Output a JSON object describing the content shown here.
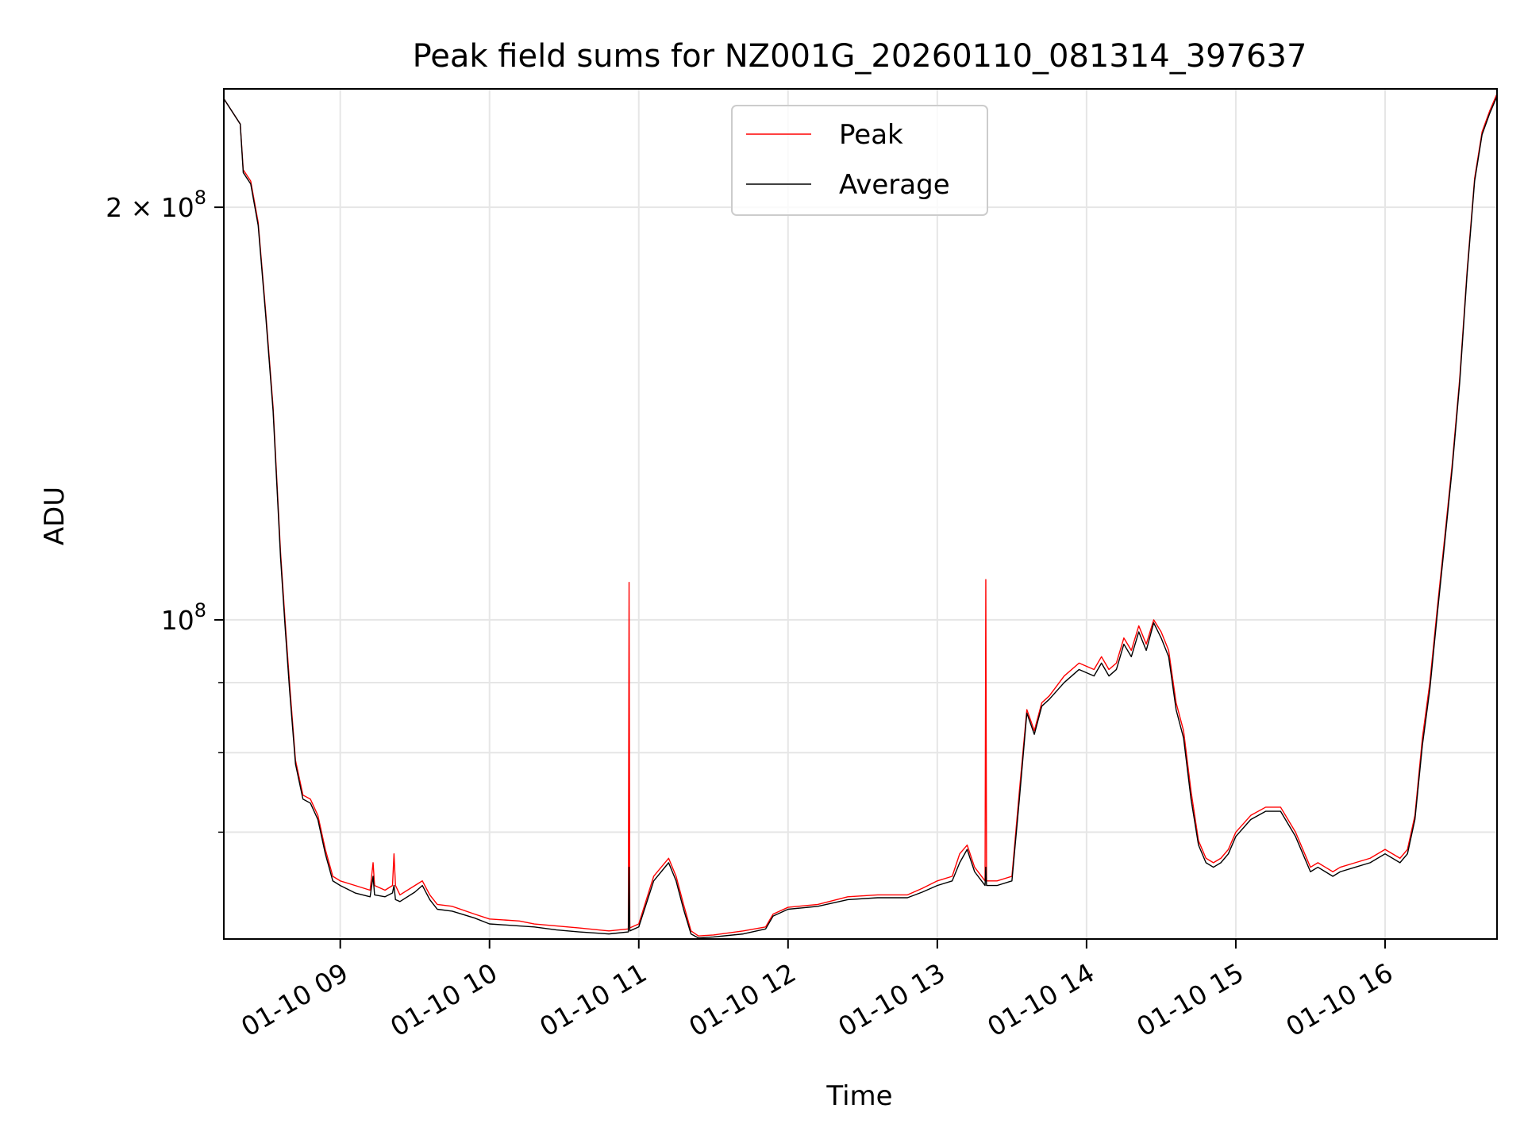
{
  "chart_data": {
    "type": "line",
    "title": "Peak field sums for NZ001G_20260110_081314_397637",
    "xlabel": "Time",
    "ylabel": "ADU",
    "yscale": "log",
    "grid": true,
    "legend_position": "top-center",
    "xlim_hours": [
      8.22,
      16.75
    ],
    "ylim": [
      58500000,
      244000000
    ],
    "x_tick_labels": [
      "01-10 09",
      "01-10 10",
      "01-10 11",
      "01-10 12",
      "01-10 13",
      "01-10 14",
      "01-10 15",
      "01-10 16"
    ],
    "x_tick_hours": [
      9,
      10,
      11,
      12,
      13,
      14,
      15,
      16
    ],
    "y_tick_labels": [
      "2 × 10^8",
      "10^8"
    ],
    "y_tick_values": [
      200000000,
      100000000
    ],
    "y_minor_ticks": [
      70000000,
      80000000,
      90000000
    ],
    "series": [
      {
        "name": "Peak",
        "color": "#ff0000",
        "x_hours": [
          8.22,
          8.33,
          8.35,
          8.4,
          8.45,
          8.5,
          8.55,
          8.6,
          8.63,
          8.66,
          8.7,
          8.75,
          8.8,
          8.85,
          8.9,
          8.95,
          9.0,
          9.1,
          9.2,
          9.22,
          9.23,
          9.3,
          9.35,
          9.36,
          9.37,
          9.4,
          9.5,
          9.55,
          9.6,
          9.65,
          9.75,
          9.9,
          10.0,
          10.2,
          10.3,
          10.45,
          10.6,
          10.8,
          10.93,
          10.935,
          10.94,
          11.0,
          11.1,
          11.2,
          11.25,
          11.3,
          11.35,
          11.4,
          11.5,
          11.7,
          11.85,
          11.9,
          12.0,
          12.2,
          12.4,
          12.6,
          12.8,
          12.9,
          13.0,
          13.1,
          13.15,
          13.2,
          13.25,
          13.32,
          13.325,
          13.33,
          13.4,
          13.5,
          13.55,
          13.6,
          13.65,
          13.7,
          13.75,
          13.85,
          13.95,
          14.05,
          14.1,
          14.15,
          14.2,
          14.25,
          14.3,
          14.35,
          14.4,
          14.45,
          14.5,
          14.55,
          14.6,
          14.65,
          14.7,
          14.75,
          14.8,
          14.85,
          14.9,
          14.95,
          15.0,
          15.1,
          15.2,
          15.3,
          15.4,
          15.5,
          15.55,
          15.6,
          15.65,
          15.7,
          15.8,
          15.9,
          16.0,
          16.1,
          16.15,
          16.2,
          16.25,
          16.3,
          16.35,
          16.4,
          16.45,
          16.5,
          16.55,
          16.6,
          16.65,
          16.7,
          16.75
        ],
        "y": [
          240000000,
          230000000,
          213000000,
          209000000,
          195000000,
          168000000,
          143000000,
          112000000,
          100000000,
          90000000,
          79000000,
          74500000,
          74000000,
          72000000,
          68000000,
          65000000,
          64500000,
          64000000,
          63500000,
          66500000,
          64000000,
          63500000,
          64000000,
          67500000,
          64000000,
          63000000,
          64000000,
          64500000,
          63000000,
          62000000,
          61800000,
          61000000,
          60500000,
          60300000,
          60000000,
          59800000,
          59600000,
          59300000,
          59500000,
          106500000,
          59600000,
          60000000,
          65000000,
          67000000,
          65000000,
          62000000,
          59300000,
          58800000,
          58900000,
          59300000,
          59700000,
          61000000,
          61700000,
          62000000,
          62800000,
          63000000,
          63000000,
          63700000,
          64500000,
          65000000,
          67500000,
          68500000,
          66000000,
          64500000,
          107000000,
          64500000,
          64500000,
          65000000,
          75000000,
          86000000,
          83000000,
          87000000,
          88000000,
          91000000,
          93000000,
          92000000,
          94000000,
          92000000,
          93000000,
          97000000,
          95000000,
          99000000,
          96000000,
          100000000,
          98000000,
          95000000,
          87000000,
          83000000,
          75000000,
          69000000,
          67000000,
          66500000,
          67000000,
          68000000,
          70000000,
          72000000,
          73000000,
          73000000,
          70000000,
          66000000,
          66500000,
          66000000,
          65500000,
          66000000,
          66500000,
          67000000,
          68000000,
          67000000,
          68000000,
          72000000,
          82000000,
          90000000,
          102000000,
          115000000,
          130000000,
          150000000,
          180000000,
          210000000,
          227000000,
          235000000,
          242000000
        ]
      },
      {
        "name": "Average",
        "color": "#000000",
        "x_hours": [
          8.22,
          8.33,
          8.35,
          8.4,
          8.45,
          8.5,
          8.55,
          8.6,
          8.63,
          8.66,
          8.7,
          8.75,
          8.8,
          8.85,
          8.9,
          8.95,
          9.0,
          9.1,
          9.2,
          9.22,
          9.23,
          9.3,
          9.35,
          9.36,
          9.37,
          9.4,
          9.5,
          9.55,
          9.6,
          9.65,
          9.75,
          9.9,
          10.0,
          10.2,
          10.3,
          10.45,
          10.6,
          10.8,
          10.93,
          10.935,
          10.94,
          11.0,
          11.1,
          11.2,
          11.25,
          11.3,
          11.35,
          11.4,
          11.5,
          11.7,
          11.85,
          11.9,
          12.0,
          12.2,
          12.4,
          12.6,
          12.8,
          12.9,
          13.0,
          13.1,
          13.15,
          13.2,
          13.25,
          13.32,
          13.325,
          13.33,
          13.4,
          13.5,
          13.55,
          13.6,
          13.65,
          13.7,
          13.75,
          13.85,
          13.95,
          14.05,
          14.1,
          14.15,
          14.2,
          14.25,
          14.3,
          14.35,
          14.4,
          14.45,
          14.5,
          14.55,
          14.6,
          14.65,
          14.7,
          14.75,
          14.8,
          14.85,
          14.9,
          14.95,
          15.0,
          15.1,
          15.2,
          15.3,
          15.4,
          15.5,
          15.55,
          15.6,
          15.65,
          15.7,
          15.8,
          15.9,
          16.0,
          16.1,
          16.15,
          16.2,
          16.25,
          16.3,
          16.35,
          16.4,
          16.45,
          16.5,
          16.55,
          16.6,
          16.65,
          16.7,
          16.75
        ],
        "y": [
          240000000,
          230000000,
          212000000,
          208000000,
          194000000,
          167000000,
          142000000,
          111000000,
          99000000,
          89000000,
          78500000,
          74000000,
          73500000,
          71500000,
          67500000,
          64500000,
          64000000,
          63200000,
          62800000,
          65000000,
          63000000,
          62800000,
          63200000,
          64000000,
          62500000,
          62300000,
          63300000,
          64000000,
          62500000,
          61500000,
          61300000,
          60600000,
          60000000,
          59800000,
          59700000,
          59400000,
          59200000,
          59000000,
          59200000,
          66000000,
          59300000,
          59700000,
          64500000,
          66500000,
          64500000,
          61500000,
          59000000,
          58600000,
          58700000,
          59000000,
          59500000,
          60800000,
          61500000,
          61800000,
          62500000,
          62700000,
          62700000,
          63300000,
          64000000,
          64500000,
          66500000,
          68000000,
          65500000,
          64000000,
          66000000,
          64000000,
          64000000,
          64500000,
          74000000,
          85500000,
          82500000,
          86500000,
          87500000,
          90000000,
          92000000,
          91000000,
          93000000,
          91000000,
          92000000,
          96000000,
          94000000,
          98000000,
          95000000,
          99500000,
          97000000,
          94000000,
          86000000,
          82000000,
          74000000,
          68500000,
          66500000,
          66000000,
          66500000,
          67500000,
          69500000,
          71500000,
          72500000,
          72500000,
          69500000,
          65500000,
          66000000,
          65500000,
          65000000,
          65500000,
          66000000,
          66500000,
          67500000,
          66500000,
          67500000,
          71500000,
          81000000,
          89000000,
          101000000,
          114000000,
          129000000,
          149000000,
          179000000,
          209000000,
          226000000,
          234000000,
          241000000
        ]
      }
    ],
    "legend": {
      "items": [
        {
          "label": "Peak",
          "color": "#ff0000"
        },
        {
          "label": "Average",
          "color": "#000000"
        }
      ]
    }
  }
}
